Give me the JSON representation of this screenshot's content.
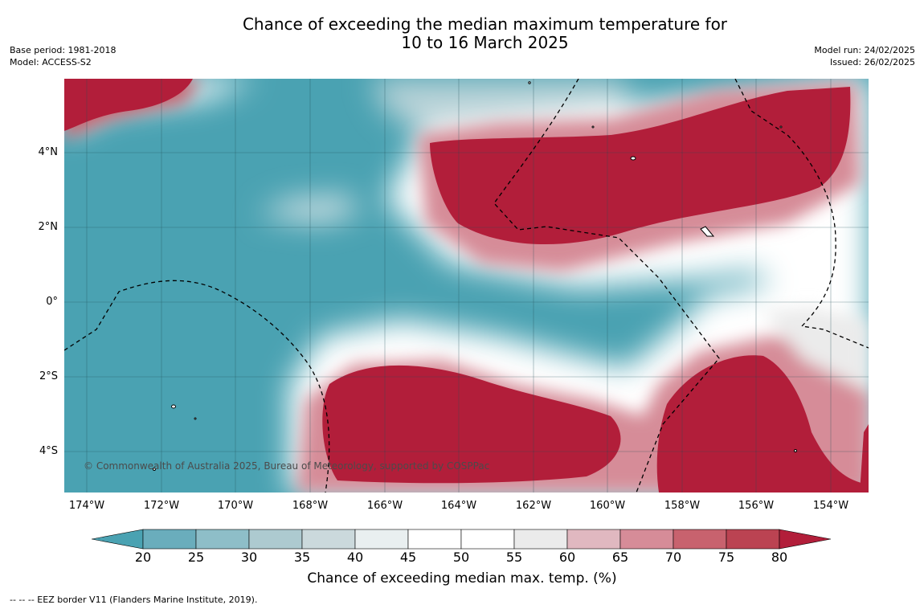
{
  "header": {
    "title_line1": "Chance of exceeding the median maximum temperature for",
    "title_line2": "10 to 16 March 2025",
    "base_period": "Base period: 1981-2018",
    "model": "Model: ACCESS-S2",
    "model_run": "Model run: 24/02/2025",
    "issued": "Issued: 26/02/2025"
  },
  "map": {
    "latitude_labels": [
      "4°N",
      "2°N",
      "0°",
      "2°S",
      "4°S"
    ],
    "longitude_labels": [
      "174°W",
      "172°W",
      "170°W",
      "168°W",
      "166°W",
      "164°W",
      "162°W",
      "160°W",
      "158°W",
      "156°W",
      "154°W"
    ],
    "copyright": "© Commonwealth of Australia 2025, Bureau of Meteorology, supported by COSPPac"
  },
  "colorbar": {
    "ticks": [
      "20",
      "25",
      "30",
      "35",
      "40",
      "45",
      "50",
      "55",
      "60",
      "65",
      "70",
      "75",
      "80"
    ],
    "colors": [
      "#4aa2b2",
      "#6aadbc",
      "#8ebec8",
      "#adcad0",
      "#cbd9dc",
      "#e9eff0",
      "#ffffff",
      "#ffffff",
      "#ebebeb",
      "#e0b8c0",
      "#d68c98",
      "#c8626e",
      "#bb4352",
      "#b21e3a"
    ],
    "label": "Chance of exceeding median max. temp. (%)"
  },
  "footer": {
    "eez_note": "--  --  -- EEZ border V11 (Flanders Marine Institute, 2019)."
  }
}
